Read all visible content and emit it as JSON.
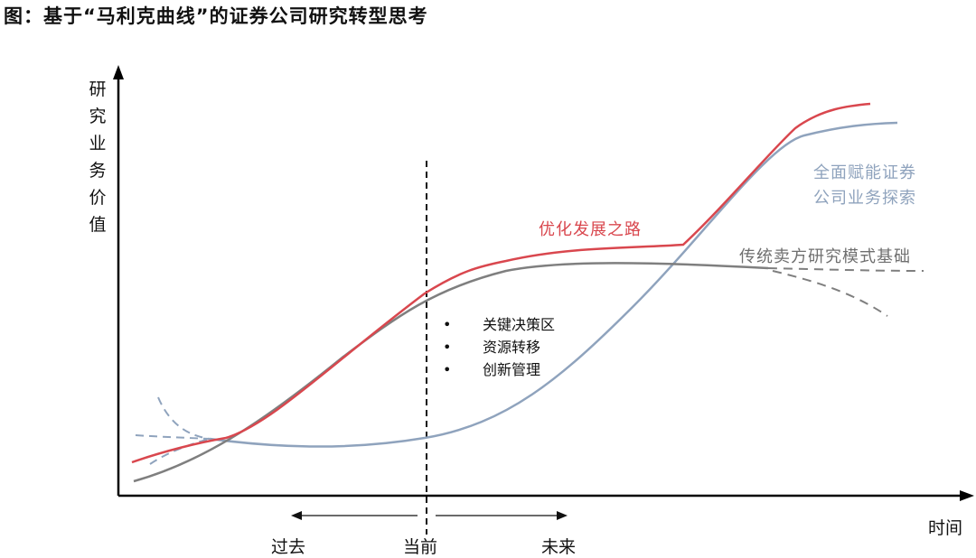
{
  "figure": {
    "title": "图：基于“马利克曲线”的证券公司研究转型思考",
    "y_axis_label": "研究业务价值",
    "x_axis_label": "时间",
    "timeline": {
      "past": "过去",
      "present": "当前",
      "future": "未来"
    },
    "curves": [
      {
        "name": "优化发展之路",
        "color": "#d9474e"
      },
      {
        "name": "传统卖方研究模式基础",
        "color": "#7f7f7f"
      },
      {
        "name": "全面赋能证券公司业务探索",
        "label_lines": [
          "全面赋能证券",
          "公司业务探索"
        ],
        "color": "#8fa3bd"
      }
    ],
    "key_zone_points": [
      "关键决策区",
      "资源转移",
      "创新管理"
    ]
  }
}
